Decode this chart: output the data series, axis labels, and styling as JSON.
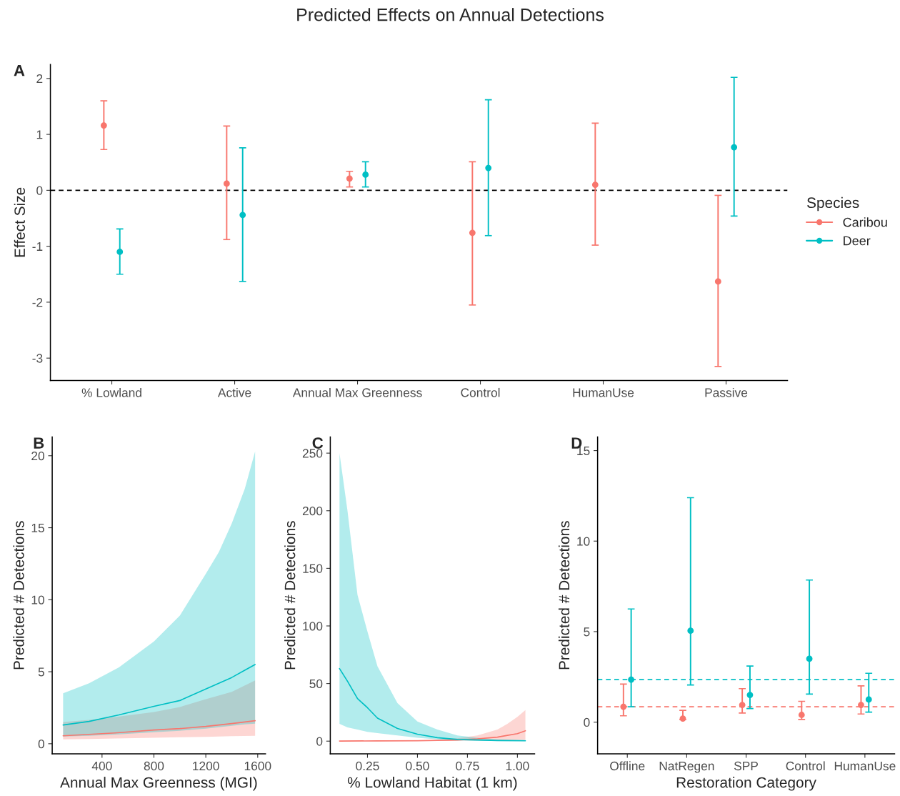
{
  "chart_data": [
    {
      "type": "scatter",
      "title": "Predicted Effects on Annual Detections",
      "annotations": [
        "A"
      ],
      "ylabel": "Effect Size",
      "legend_title": "Species",
      "legend": "right",
      "marker": "circle",
      "grid": false,
      "categories": [
        "% Lowland",
        "Active",
        "Annual Max Greenness",
        "Control",
        "HumanUse",
        "Passive"
      ],
      "ylim": [
        -3.4,
        2.25
      ],
      "yticks": [
        -3,
        -2,
        -1,
        0,
        1,
        2
      ],
      "ref_lines": [
        {
          "axis": "y",
          "value": 0,
          "color": "#000000",
          "line_style": "dashed"
        }
      ],
      "series": [
        {
          "name": "Caribou",
          "color": "#f8766d",
          "values": [
            1.16,
            0.12,
            0.21,
            -0.76,
            0.1,
            -1.63
          ],
          "errors": [
            [
              0.73,
              1.6
            ],
            [
              -0.88,
              1.15
            ],
            [
              0.06,
              0.34
            ],
            [
              -2.05,
              0.51
            ],
            [
              -0.98,
              1.2
            ],
            [
              -3.15,
              -0.09
            ]
          ]
        },
        {
          "name": "Deer",
          "color": "#00bfc4",
          "values": [
            -1.1,
            -0.44,
            0.28,
            0.4,
            null,
            0.77
          ],
          "errors": [
            [
              -1.5,
              -0.69
            ],
            [
              -1.63,
              0.76
            ],
            [
              0.06,
              0.51
            ],
            [
              -0.81,
              1.62
            ],
            null,
            [
              -0.46,
              2.02
            ]
          ]
        }
      ]
    },
    {
      "type": "line",
      "annotations": [
        "B"
      ],
      "xlabel": "Annual Max Greenness (MGI)",
      "ylabel": "Predicted # Detections",
      "legend": false,
      "grid": false,
      "marker": "none",
      "line_style": "solid",
      "xlim": [
        16,
        1660
      ],
      "xticks": [
        400,
        800,
        1200,
        1600
      ],
      "ylim": [
        -0.7,
        21.3
      ],
      "yticks": [
        0,
        5,
        10,
        15,
        20
      ],
      "series": [
        {
          "color": "#f8766d",
          "x": [
            100,
            300,
            500,
            800,
            1000,
            1200,
            1400,
            1580
          ],
          "values": [
            0.55,
            0.65,
            0.75,
            0.95,
            1.05,
            1.2,
            1.4,
            1.6
          ],
          "lower": [
            0.3,
            0.33,
            0.37,
            0.42,
            0.45,
            0.48,
            0.52,
            0.55
          ],
          "upper": [
            1.5,
            1.65,
            1.85,
            2.2,
            2.55,
            3.1,
            3.6,
            4.4
          ]
        },
        {
          "color": "#00bfc4",
          "x": [
            100,
            300,
            530,
            800,
            1000,
            1200,
            1300,
            1400,
            1500,
            1580
          ],
          "values": [
            1.3,
            1.55,
            2.0,
            2.6,
            3.0,
            3.8,
            4.2,
            4.6,
            5.1,
            5.5
          ],
          "lower": [
            0.5,
            0.55,
            0.65,
            0.8,
            0.9,
            1.05,
            1.15,
            1.25,
            1.35,
            1.4
          ],
          "upper": [
            3.5,
            4.2,
            5.3,
            7.1,
            8.9,
            11.8,
            13.3,
            15.3,
            17.7,
            20.3
          ]
        }
      ]
    },
    {
      "type": "line",
      "annotations": [
        "C"
      ],
      "xlabel": "% Lowland Habitat (1 km)",
      "ylabel": "Predicted # Detections",
      "legend": false,
      "grid": false,
      "marker": "none",
      "line_style": "solid",
      "xlim": [
        0.064,
        1.086
      ],
      "xticks": [
        {
          "value": 0.25,
          "label": "0.25"
        },
        {
          "value": 0.5,
          "label": "0.50"
        },
        {
          "value": 0.75,
          "label": "0.75"
        },
        {
          "value": 1.0,
          "label": "1.00"
        }
      ],
      "ylim": [
        -11,
        264
      ],
      "yticks": [
        0,
        50,
        100,
        150,
        200,
        250
      ],
      "series": [
        {
          "color": "#f8766d",
          "x": [
            0.11,
            0.3,
            0.5,
            0.6,
            0.7,
            0.8,
            0.9,
            0.95,
            1.0,
            1.04
          ],
          "values": [
            0.1,
            0.2,
            0.3,
            0.6,
            1.0,
            2.0,
            3.5,
            5.0,
            6.5,
            9
          ],
          "lower": [
            0,
            0,
            0.1,
            0.2,
            0.3,
            0.5,
            0.7,
            0.8,
            0.9,
            1.0
          ],
          "upper": [
            0.3,
            0.6,
            1.0,
            1.5,
            2.5,
            5.0,
            10,
            15,
            21,
            27
          ]
        },
        {
          "color": "#00bfc4",
          "x": [
            0.11,
            0.15,
            0.2,
            0.25,
            0.3,
            0.4,
            0.5,
            0.6,
            0.7,
            0.8,
            0.9,
            1.04
          ],
          "values": [
            63,
            52,
            37,
            29,
            20,
            11,
            6,
            3,
            1.5,
            1.0,
            0.5,
            0.3
          ],
          "lower": [
            15,
            12,
            10,
            8,
            7,
            5,
            3,
            1.5,
            0.8,
            0.5,
            0.2,
            0.1
          ],
          "upper": [
            250,
            200,
            127,
            95,
            65,
            33,
            17,
            10,
            5,
            3,
            1.5,
            1.0
          ]
        }
      ]
    },
    {
      "type": "scatter",
      "annotations": [
        "D"
      ],
      "xlabel": "Restoration Category",
      "ylabel": "Predicted # Detections",
      "legend": false,
      "grid": false,
      "marker": "circle",
      "categories": [
        "Offline",
        "NatRegen",
        "SPP",
        "Control",
        "HumanUse"
      ],
      "ylim": [
        -1.75,
        15.75
      ],
      "yticks": [
        0,
        5,
        10,
        15
      ],
      "ref_lines": [
        {
          "axis": "y",
          "value": 2.35,
          "color": "#00bfc4",
          "line_style": "dashed"
        },
        {
          "axis": "y",
          "value": 0.85,
          "color": "#f8766d",
          "line_style": "dashed"
        }
      ],
      "series": [
        {
          "color": "#f8766d",
          "values": [
            0.85,
            0.2,
            0.95,
            0.4,
            0.95
          ],
          "errors": [
            [
              0.35,
              2.1
            ],
            [
              0.15,
              0.65
            ],
            [
              0.5,
              1.85
            ],
            [
              0.15,
              1.15
            ],
            [
              0.45,
              2.0
            ]
          ]
        },
        {
          "color": "#00bfc4",
          "values": [
            2.35,
            5.05,
            1.5,
            3.5,
            1.25
          ],
          "errors": [
            [
              0.85,
              6.25
            ],
            [
              2.05,
              12.4
            ],
            [
              0.75,
              3.1
            ],
            [
              1.55,
              7.85
            ],
            [
              0.55,
              2.7
            ]
          ]
        }
      ]
    }
  ]
}
